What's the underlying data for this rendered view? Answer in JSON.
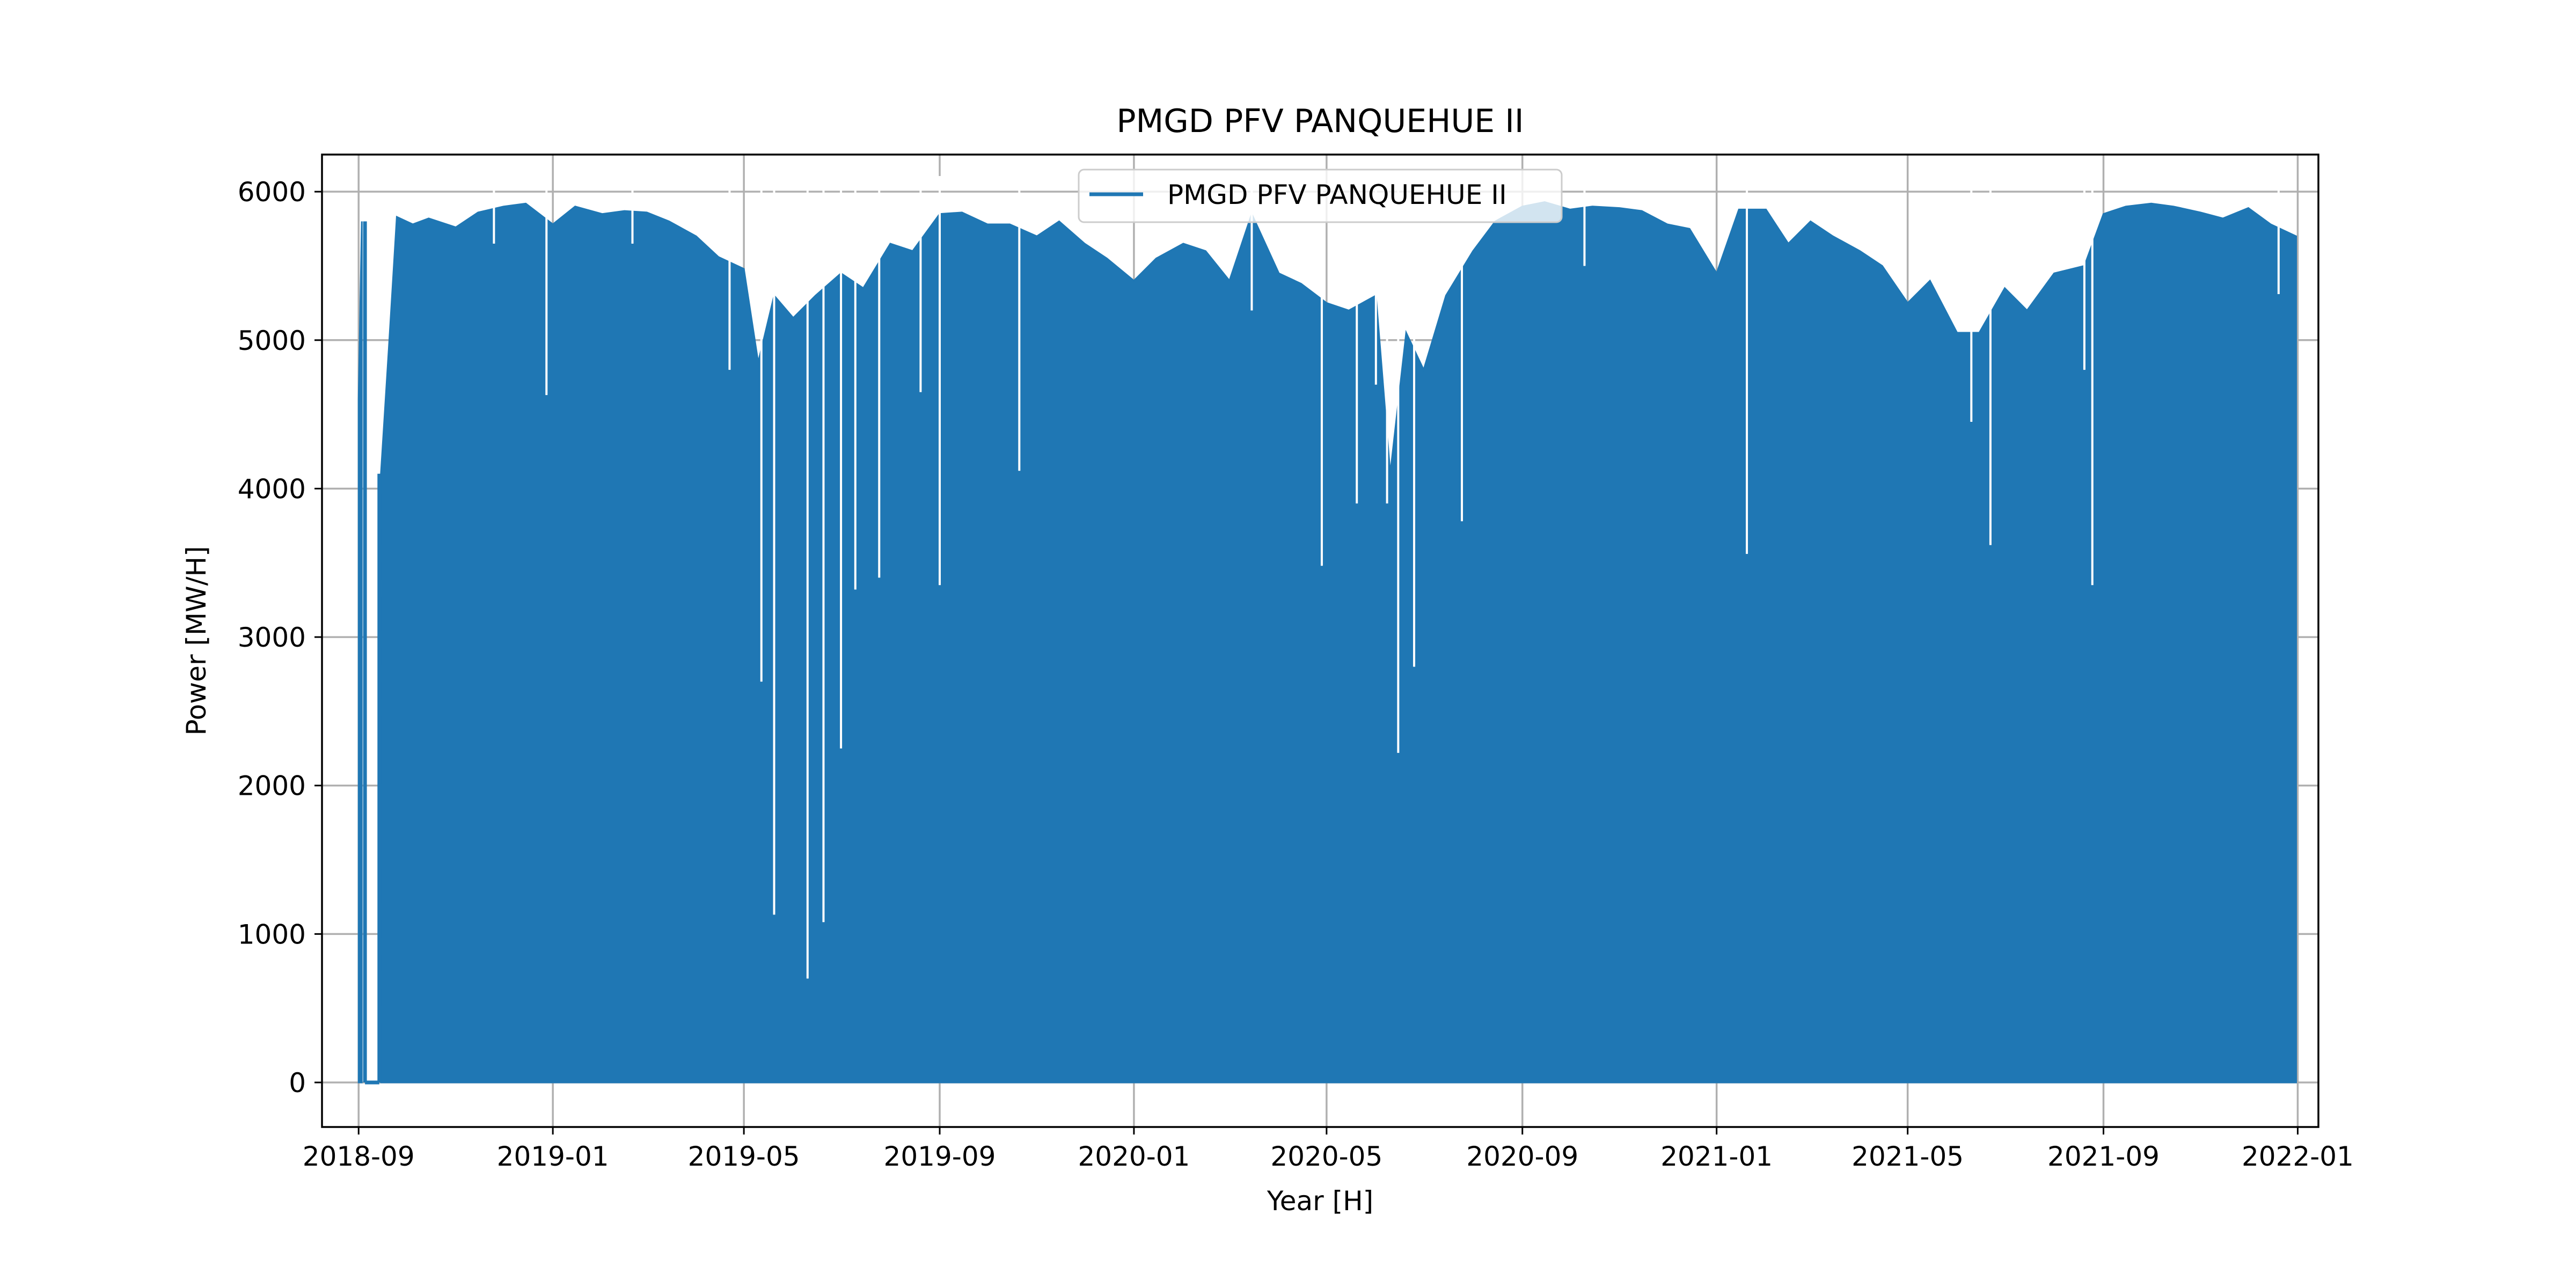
{
  "chart_data": {
    "type": "area",
    "title": "PMGD PFV PANQUEHUE II",
    "xlabel": "Year [H]",
    "ylabel": "Power [MW/H]",
    "x_ticks": [
      "2018-09",
      "2019-01",
      "2019-05",
      "2019-09",
      "2020-01",
      "2020-05",
      "2020-09",
      "2021-01",
      "2021-05",
      "2021-09",
      "2022-01"
    ],
    "y_ticks": [
      "0",
      "1000",
      "2000",
      "3000",
      "4000",
      "5000",
      "6000"
    ],
    "xlim": [
      "2018-08-09",
      "2022-01-14"
    ],
    "ylim": [
      -300,
      6250
    ],
    "grid": true,
    "legend_position": "upper center",
    "color": "#1f77b4",
    "note_series": "series is hourly; only the daily peak envelope is listed",
    "series": [
      {
        "name": "PMGD PFV PANQUEHUE II",
        "envelope": [
          [
            "2018-09-01",
            4600
          ],
          [
            "2018-09-03",
            5800
          ],
          [
            "2018-09-05",
            0
          ],
          [
            "2018-09-14",
            0
          ],
          [
            "2018-09-15",
            4100
          ],
          [
            "2018-09-20",
            4950
          ],
          [
            "2018-09-25",
            5830
          ],
          [
            "2018-10-05",
            5780
          ],
          [
            "2018-10-15",
            5820
          ],
          [
            "2018-11-01",
            5760
          ],
          [
            "2018-11-15",
            5860
          ],
          [
            "2018-12-01",
            5900
          ],
          [
            "2018-12-15",
            5920
          ],
          [
            "2019-01-01",
            5780
          ],
          [
            "2019-01-15",
            5900
          ],
          [
            "2019-02-01",
            5850
          ],
          [
            "2019-02-15",
            5870
          ],
          [
            "2019-03-01",
            5860
          ],
          [
            "2019-03-15",
            5800
          ],
          [
            "2019-04-01",
            5700
          ],
          [
            "2019-04-15",
            5560
          ],
          [
            "2019-05-01",
            5480
          ],
          [
            "2019-05-10",
            4850
          ],
          [
            "2019-05-20",
            5300
          ],
          [
            "2019-06-01",
            5150
          ],
          [
            "2019-06-15",
            5300
          ],
          [
            "2019-07-01",
            5450
          ],
          [
            "2019-07-15",
            5350
          ],
          [
            "2019-08-01",
            5650
          ],
          [
            "2019-08-15",
            5600
          ],
          [
            "2019-09-01",
            5850
          ],
          [
            "2019-09-15",
            5860
          ],
          [
            "2019-10-01",
            5780
          ],
          [
            "2019-10-15",
            5780
          ],
          [
            "2019-11-01",
            5700
          ],
          [
            "2019-11-15",
            5800
          ],
          [
            "2019-12-01",
            5650
          ],
          [
            "2019-12-15",
            5550
          ],
          [
            "2020-01-01",
            5400
          ],
          [
            "2020-01-15",
            5550
          ],
          [
            "2020-02-01",
            5650
          ],
          [
            "2020-02-15",
            5600
          ],
          [
            "2020-03-01",
            5400
          ],
          [
            "2020-03-15",
            5850
          ],
          [
            "2020-04-01",
            5450
          ],
          [
            "2020-04-15",
            5380
          ],
          [
            "2020-05-01",
            5250
          ],
          [
            "2020-05-15",
            5200
          ],
          [
            "2020-06-01",
            5300
          ],
          [
            "2020-06-10",
            4100
          ],
          [
            "2020-06-20",
            5050
          ],
          [
            "2020-07-01",
            4800
          ],
          [
            "2020-07-15",
            5300
          ],
          [
            "2020-08-01",
            5600
          ],
          [
            "2020-08-15",
            5800
          ],
          [
            "2020-09-01",
            5900
          ],
          [
            "2020-09-15",
            5930
          ],
          [
            "2020-10-01",
            5880
          ],
          [
            "2020-10-15",
            5900
          ],
          [
            "2020-11-01",
            5890
          ],
          [
            "2020-11-15",
            5870
          ],
          [
            "2020-12-01",
            5780
          ],
          [
            "2020-12-15",
            5750
          ],
          [
            "2021-01-01",
            5450
          ],
          [
            "2021-01-15",
            5880
          ],
          [
            "2021-02-01",
            5880
          ],
          [
            "2021-02-15",
            5650
          ],
          [
            "2021-03-01",
            5800
          ],
          [
            "2021-03-15",
            5700
          ],
          [
            "2021-04-01",
            5600
          ],
          [
            "2021-04-15",
            5500
          ],
          [
            "2021-05-01",
            5250
          ],
          [
            "2021-05-15",
            5400
          ],
          [
            "2021-06-01",
            5050
          ],
          [
            "2021-06-15",
            5050
          ],
          [
            "2021-07-01",
            5350
          ],
          [
            "2021-07-15",
            5200
          ],
          [
            "2021-08-01",
            5450
          ],
          [
            "2021-08-20",
            5500
          ],
          [
            "2021-09-01",
            5850
          ],
          [
            "2021-09-15",
            5900
          ],
          [
            "2021-10-01",
            5920
          ],
          [
            "2021-10-15",
            5900
          ],
          [
            "2021-11-01",
            5860
          ],
          [
            "2021-11-15",
            5820
          ],
          [
            "2021-12-01",
            5890
          ],
          [
            "2021-12-15",
            5780
          ],
          [
            "2021-12-31",
            5700
          ]
        ],
        "dips": [
          [
            "2018-11-25",
            5650
          ],
          [
            "2018-12-28",
            4630
          ],
          [
            "2019-02-20",
            5650
          ],
          [
            "2019-04-22",
            4800
          ],
          [
            "2019-05-12",
            2700
          ],
          [
            "2019-05-20",
            1130
          ],
          [
            "2019-06-10",
            700
          ],
          [
            "2019-06-20",
            1080
          ],
          [
            "2019-07-01",
            2250
          ],
          [
            "2019-07-10",
            3320
          ],
          [
            "2019-07-25",
            3400
          ],
          [
            "2019-08-20",
            4650
          ],
          [
            "2019-09-01",
            3350
          ],
          [
            "2019-10-21",
            4120
          ],
          [
            "2020-03-15",
            5200
          ],
          [
            "2020-04-28",
            3480
          ],
          [
            "2020-05-20",
            3900
          ],
          [
            "2020-06-01",
            4700
          ],
          [
            "2020-06-08",
            3900
          ],
          [
            "2020-06-15",
            2220
          ],
          [
            "2020-06-25",
            2800
          ],
          [
            "2020-07-25",
            3780
          ],
          [
            "2020-10-10",
            5500
          ],
          [
            "2021-01-20",
            3560
          ],
          [
            "2021-06-10",
            4450
          ],
          [
            "2021-06-22",
            3620
          ],
          [
            "2021-08-20",
            4800
          ],
          [
            "2021-08-25",
            3350
          ],
          [
            "2021-12-20",
            5310
          ]
        ]
      }
    ]
  }
}
